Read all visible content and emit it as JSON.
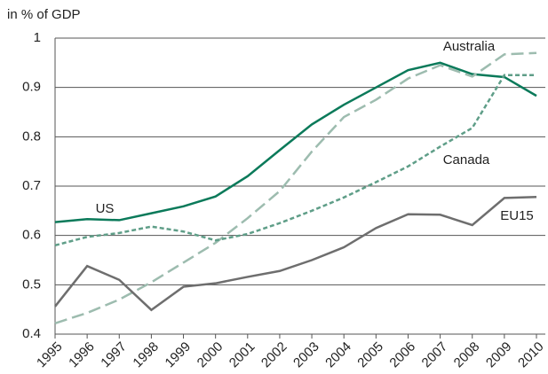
{
  "chart_data": {
    "type": "line",
    "y_label": "in % of GDP",
    "x": [
      "1995",
      "1996",
      "1997",
      "1998",
      "1999",
      "2000",
      "2001",
      "2002",
      "2003",
      "2004",
      "2005",
      "2006",
      "2007",
      "2008",
      "2009",
      "2010"
    ],
    "series": [
      {
        "name": "US",
        "color": "#0b7a5a",
        "dash": "solid",
        "values": [
          0.627,
          0.633,
          0.631,
          0.645,
          0.659,
          0.679,
          0.72,
          0.773,
          0.825,
          0.865,
          0.9,
          0.935,
          0.95,
          0.927,
          0.921,
          0.883
        ]
      },
      {
        "name": "Australia",
        "color": "#9dbcaf",
        "dash": "long",
        "values": [
          0.422,
          0.443,
          0.47,
          0.505,
          0.545,
          0.585,
          0.635,
          0.69,
          0.77,
          0.84,
          0.875,
          0.918,
          0.945,
          0.922,
          0.967,
          0.97
        ]
      },
      {
        "name": "Canada",
        "color": "#5f9e88",
        "dash": "short",
        "values": [
          0.58,
          0.597,
          0.605,
          0.618,
          0.608,
          0.59,
          0.603,
          0.625,
          0.65,
          0.677,
          0.708,
          0.74,
          0.78,
          0.818,
          0.925,
          0.925
        ]
      },
      {
        "name": "EU15",
        "color": "#6e6e6e",
        "dash": "solid",
        "values": [
          0.456,
          0.538,
          0.51,
          0.449,
          0.496,
          0.503,
          0.516,
          0.528,
          0.55,
          0.576,
          0.615,
          0.643,
          0.642,
          0.621,
          0.676,
          0.678
        ]
      }
    ],
    "ylim": [
      0.4,
      1
    ],
    "yticks": [
      0.4,
      0.5,
      0.6,
      0.7,
      0.8,
      0.9,
      1
    ],
    "grid": true
  }
}
